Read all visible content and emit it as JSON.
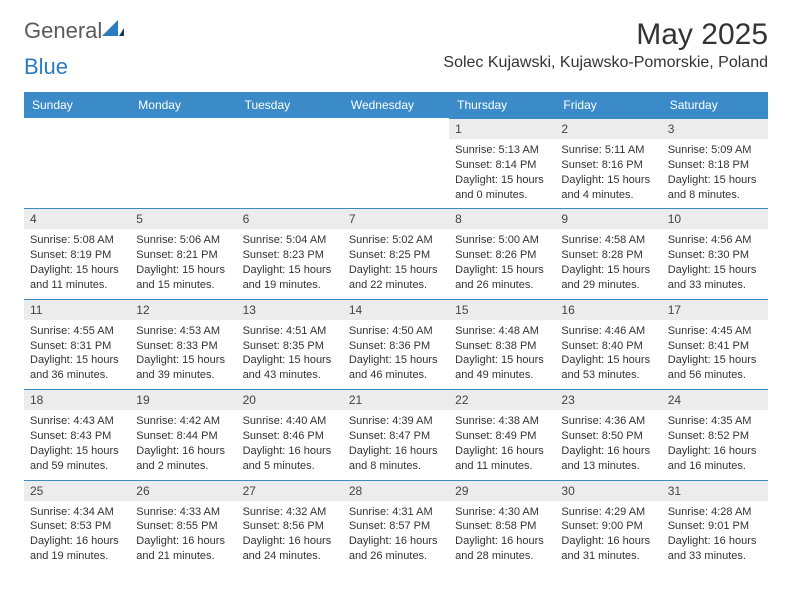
{
  "logo": {
    "general": "General",
    "blue": "Blue"
  },
  "title": "May 2025",
  "location": "Solec Kujawski, Kujawsko-Pomorskie, Poland",
  "colors": {
    "header_bg": "#3b8bc9",
    "header_text": "#ffffff",
    "daynum_bg": "#ececec",
    "text": "#333333",
    "logo_grey": "#5a5a5a",
    "logo_blue": "#2a7bbf",
    "background": "#ffffff"
  },
  "days_of_week": [
    "Sunday",
    "Monday",
    "Tuesday",
    "Wednesday",
    "Thursday",
    "Friday",
    "Saturday"
  ],
  "weeks": [
    [
      null,
      null,
      null,
      null,
      {
        "n": "1",
        "sr": "5:13 AM",
        "ss": "8:14 PM",
        "dl": "15 hours and 0 minutes."
      },
      {
        "n": "2",
        "sr": "5:11 AM",
        "ss": "8:16 PM",
        "dl": "15 hours and 4 minutes."
      },
      {
        "n": "3",
        "sr": "5:09 AM",
        "ss": "8:18 PM",
        "dl": "15 hours and 8 minutes."
      }
    ],
    [
      {
        "n": "4",
        "sr": "5:08 AM",
        "ss": "8:19 PM",
        "dl": "15 hours and 11 minutes."
      },
      {
        "n": "5",
        "sr": "5:06 AM",
        "ss": "8:21 PM",
        "dl": "15 hours and 15 minutes."
      },
      {
        "n": "6",
        "sr": "5:04 AM",
        "ss": "8:23 PM",
        "dl": "15 hours and 19 minutes."
      },
      {
        "n": "7",
        "sr": "5:02 AM",
        "ss": "8:25 PM",
        "dl": "15 hours and 22 minutes."
      },
      {
        "n": "8",
        "sr": "5:00 AM",
        "ss": "8:26 PM",
        "dl": "15 hours and 26 minutes."
      },
      {
        "n": "9",
        "sr": "4:58 AM",
        "ss": "8:28 PM",
        "dl": "15 hours and 29 minutes."
      },
      {
        "n": "10",
        "sr": "4:56 AM",
        "ss": "8:30 PM",
        "dl": "15 hours and 33 minutes."
      }
    ],
    [
      {
        "n": "11",
        "sr": "4:55 AM",
        "ss": "8:31 PM",
        "dl": "15 hours and 36 minutes."
      },
      {
        "n": "12",
        "sr": "4:53 AM",
        "ss": "8:33 PM",
        "dl": "15 hours and 39 minutes."
      },
      {
        "n": "13",
        "sr": "4:51 AM",
        "ss": "8:35 PM",
        "dl": "15 hours and 43 minutes."
      },
      {
        "n": "14",
        "sr": "4:50 AM",
        "ss": "8:36 PM",
        "dl": "15 hours and 46 minutes."
      },
      {
        "n": "15",
        "sr": "4:48 AM",
        "ss": "8:38 PM",
        "dl": "15 hours and 49 minutes."
      },
      {
        "n": "16",
        "sr": "4:46 AM",
        "ss": "8:40 PM",
        "dl": "15 hours and 53 minutes."
      },
      {
        "n": "17",
        "sr": "4:45 AM",
        "ss": "8:41 PM",
        "dl": "15 hours and 56 minutes."
      }
    ],
    [
      {
        "n": "18",
        "sr": "4:43 AM",
        "ss": "8:43 PM",
        "dl": "15 hours and 59 minutes."
      },
      {
        "n": "19",
        "sr": "4:42 AM",
        "ss": "8:44 PM",
        "dl": "16 hours and 2 minutes."
      },
      {
        "n": "20",
        "sr": "4:40 AM",
        "ss": "8:46 PM",
        "dl": "16 hours and 5 minutes."
      },
      {
        "n": "21",
        "sr": "4:39 AM",
        "ss": "8:47 PM",
        "dl": "16 hours and 8 minutes."
      },
      {
        "n": "22",
        "sr": "4:38 AM",
        "ss": "8:49 PM",
        "dl": "16 hours and 11 minutes."
      },
      {
        "n": "23",
        "sr": "4:36 AM",
        "ss": "8:50 PM",
        "dl": "16 hours and 13 minutes."
      },
      {
        "n": "24",
        "sr": "4:35 AM",
        "ss": "8:52 PM",
        "dl": "16 hours and 16 minutes."
      }
    ],
    [
      {
        "n": "25",
        "sr": "4:34 AM",
        "ss": "8:53 PM",
        "dl": "16 hours and 19 minutes."
      },
      {
        "n": "26",
        "sr": "4:33 AM",
        "ss": "8:55 PM",
        "dl": "16 hours and 21 minutes."
      },
      {
        "n": "27",
        "sr": "4:32 AM",
        "ss": "8:56 PM",
        "dl": "16 hours and 24 minutes."
      },
      {
        "n": "28",
        "sr": "4:31 AM",
        "ss": "8:57 PM",
        "dl": "16 hours and 26 minutes."
      },
      {
        "n": "29",
        "sr": "4:30 AM",
        "ss": "8:58 PM",
        "dl": "16 hours and 28 minutes."
      },
      {
        "n": "30",
        "sr": "4:29 AM",
        "ss": "9:00 PM",
        "dl": "16 hours and 31 minutes."
      },
      {
        "n": "31",
        "sr": "4:28 AM",
        "ss": "9:01 PM",
        "dl": "16 hours and 33 minutes."
      }
    ]
  ],
  "labels": {
    "sunrise": "Sunrise: ",
    "sunset": "Sunset: ",
    "daylight": "Daylight: "
  }
}
